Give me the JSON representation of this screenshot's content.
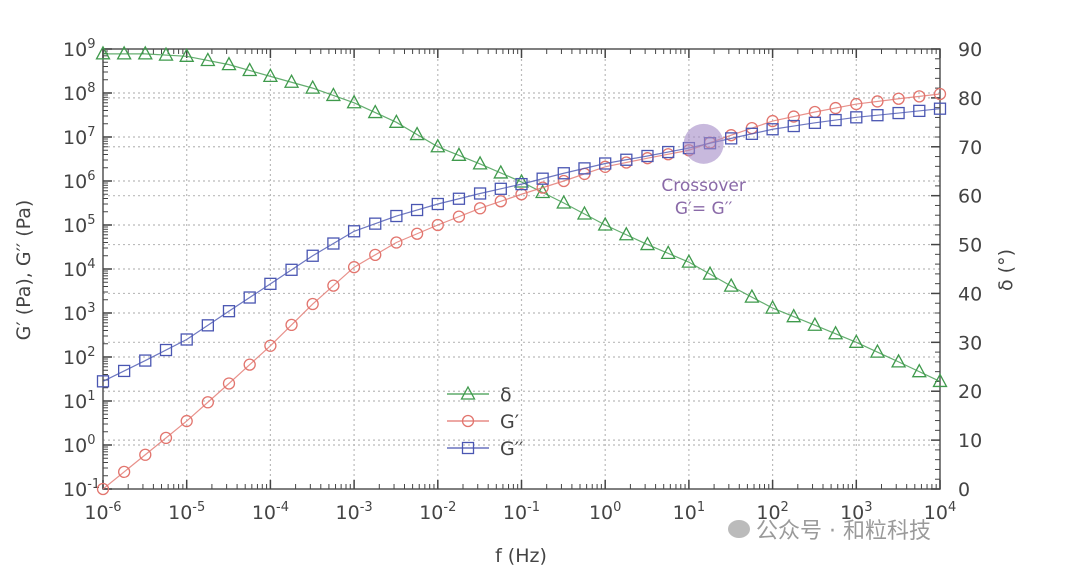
{
  "chart_data": {
    "type": "line",
    "title": "",
    "xlabel": "f (Hz)",
    "ylabel": "G′ (Pa), G′′ (Pa)",
    "y2label": "δ (°)",
    "xscale": "log",
    "yscale": "log",
    "xlim": [
      1e-06,
      10000.0
    ],
    "ylim": [
      0.1,
      1000000000.0
    ],
    "y2lim": [
      0,
      90
    ],
    "grid": true,
    "legend_position": "lower-center",
    "x_tick_labels": [
      "10-6",
      "10-5",
      "10-4",
      "10-3",
      "10-2",
      "10-1",
      "100",
      "101",
      "102",
      "103",
      "104"
    ],
    "y_tick_labels": [
      "10-1",
      "100",
      "101",
      "102",
      "103",
      "104",
      "105",
      "106",
      "107",
      "108",
      "109"
    ],
    "y2_tick_labels": [
      "0",
      "10",
      "20",
      "30",
      "40",
      "50",
      "60",
      "70",
      "80",
      "90"
    ],
    "x": [
      1e-06,
      3.2e-06,
      1e-05,
      3.2e-05,
      0.0001,
      0.00032,
      0.001,
      0.0032,
      0.01,
      0.032,
      0.1,
      0.32,
      1,
      3.2,
      10,
      32,
      100,
      320,
      1000,
      3200,
      10000
    ],
    "series": [
      {
        "name": "δ",
        "axis": "right",
        "marker": "triangle",
        "color": "#3f9a4c",
        "values": [
          89,
          89,
          88.5,
          86.8,
          84.4,
          82,
          79,
          75,
          70,
          66.5,
          62.8,
          58.5,
          54,
          50,
          46.4,
          41.5,
          37,
          33.5,
          30,
          26,
          22
        ]
      },
      {
        "name": "G′",
        "axis": "left",
        "marker": "circle",
        "color": "#e2756e",
        "values": [
          0.1,
          0.6,
          3.5,
          25,
          180,
          1600,
          11000,
          40000,
          100000,
          240000,
          500000,
          1000000,
          2100000,
          3300000,
          5000000,
          11000000,
          23000000,
          37000000,
          56000000,
          74000000,
          95000000
        ]
      },
      {
        "name": "G′′",
        "axis": "left",
        "marker": "square",
        "color": "#4a56b2",
        "values": [
          28,
          83,
          250,
          1100,
          4600,
          20000,
          72000,
          160000,
          300000,
          520000,
          850000,
          1500000,
          2500000,
          3700000,
          5600000,
          9300000,
          15000000,
          21000000,
          28000000,
          35000000,
          44000000
        ]
      }
    ],
    "annotations": [
      {
        "text": "Crossover",
        "text2": "G′= G′′",
        "x": 15,
        "y": 7000000,
        "color": "#8a6aa8",
        "highlight_color": "#a48ac6"
      }
    ]
  },
  "watermark": {
    "text": "公众号 · 和粒科技",
    "icon": "wechat-icon"
  }
}
